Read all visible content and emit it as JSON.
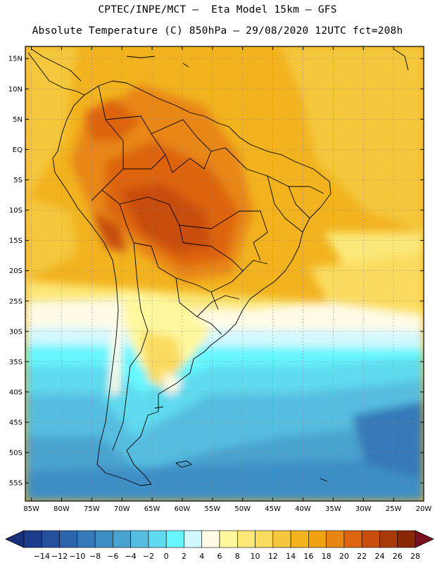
{
  "header": {
    "line1": "CPTEC/INPE/MCT –  Eta Model 15km – GFS",
    "line2": "Absolute Temperature (C) 850hPa – 29/08/2020 12UTC fct=208h"
  },
  "map": {
    "lat_labels": [
      "15N",
      "10N",
      "5N",
      "EQ",
      "5S",
      "10S",
      "15S",
      "20S",
      "25S",
      "30S",
      "35S",
      "40S",
      "45S",
      "50S",
      "55S"
    ],
    "lon_labels": [
      "85W",
      "80W",
      "75W",
      "70W",
      "65W",
      "60W",
      "55W",
      "50W",
      "45W",
      "40W",
      "35W",
      "30W",
      "25W",
      "20W"
    ],
    "lat_range": [
      17,
      -58
    ],
    "lon_range": [
      -86,
      -20
    ]
  },
  "colorbar": {
    "labels": [
      "-14",
      "-12",
      "-10",
      "-8",
      "-6",
      "-4",
      "-2",
      "0",
      "2",
      "4",
      "6",
      "8",
      "10",
      "12",
      "14",
      "16",
      "18",
      "20",
      "22",
      "24",
      "26",
      "28"
    ],
    "colors": [
      "#1e3c8c",
      "#24509e",
      "#2d65ad",
      "#3579b8",
      "#3d8ec4",
      "#49a3cf",
      "#56bde0",
      "#5fdaef",
      "#66f6ff",
      "#d2f8ff",
      "#fffbe6",
      "#fff79e",
      "#fce878",
      "#fadb5e",
      "#f4c73c",
      "#f2b31f",
      "#efa10f",
      "#e88612",
      "#dd6410",
      "#c84e0d",
      "#a93b0a",
      "#8a2806"
    ],
    "left_arrow_color": "#1a2f7a",
    "right_arrow_color": "#7a1020"
  }
}
